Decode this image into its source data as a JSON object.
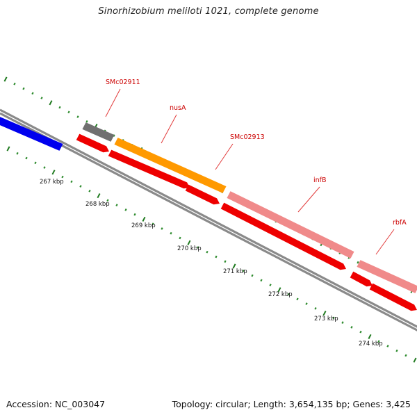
{
  "title": "Sinorhizobium meliloti 1021, complete genome",
  "footer": {
    "accession": "Accession: NC_003047",
    "summary": "Topology: circular; Length: 3,654,135 bp; Genes: 3,425"
  },
  "colors": {
    "backbone": "#8a8a8a",
    "tick_major": "#1f7a1f",
    "tick_minor": "#2e8b2e",
    "label": "#cc0000",
    "label_line": "#e23b3b",
    "feature_blue": "#0000ee",
    "feature_gray": "#707070",
    "feature_orange": "#ff9900",
    "feature_pink": "#f08a8a",
    "feature_red": "#ee0000"
  },
  "scale_labels": [
    "267 kbp",
    "268 kbp",
    "269 kbp",
    "270 kbp",
    "271 kbp",
    "272 kbp",
    "273 kbp",
    "274 kbp"
  ],
  "gene_labels": [
    "SMc02911",
    "nusA",
    "SMc02913",
    "infB",
    "rbfA"
  ]
}
